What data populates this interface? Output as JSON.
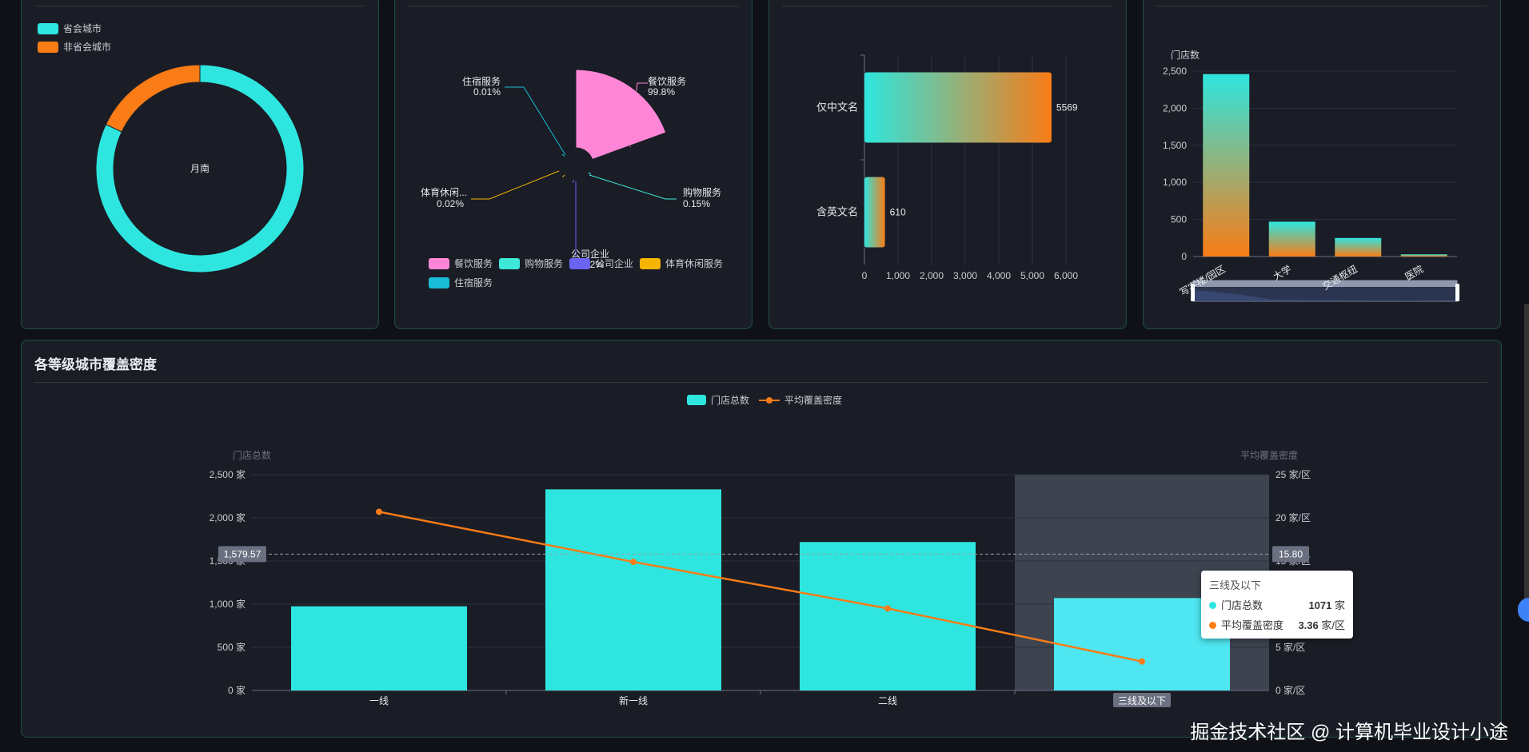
{
  "panels": {
    "p1": {
      "legend": [
        {
          "label": "省会城市",
          "color": "#2ee6df"
        },
        {
          "label": "非省会城市",
          "color": "#f97c16"
        }
      ],
      "center_label": "月南"
    },
    "p2": {
      "callouts": {
        "catering": {
          "name": "餐饮服务",
          "pct": "99.8%"
        },
        "lodging": {
          "name": "住宿服务",
          "pct": "0.01%"
        },
        "sports": {
          "name": "体育休闲...",
          "pct": "0.02%"
        },
        "shopping": {
          "name": "购物服务",
          "pct": "0.15%"
        },
        "company": {
          "name": "公司企业",
          "pct": "0.02%"
        }
      },
      "legend": [
        {
          "label": "餐饮服务",
          "color": "#ff85d6"
        },
        {
          "label": "购物服务",
          "color": "#3ee8d9"
        },
        {
          "label": "公司企业",
          "color": "#6b63f2"
        },
        {
          "label": "体育休闲服务",
          "color": "#f5b400"
        },
        {
          "label": "住宿服务",
          "color": "#19bcd6"
        }
      ]
    },
    "p4": {
      "ylabel": "门店数"
    }
  },
  "main": {
    "title": "各等级城市覆盖密度",
    "legend": {
      "bar": "门店总数",
      "line": "平均覆盖密度"
    },
    "left_axis_name": "门店总数",
    "right_axis_name": "平均覆盖密度",
    "crosshair_left": "1,579.57",
    "crosshair_right": "15.80",
    "tooltip": {
      "title": "三线及以下",
      "row1_label": "门店总数",
      "row1_value": "1071",
      "row1_unit": "家",
      "row2_label": "平均覆盖密度",
      "row2_value": "3.36",
      "row2_unit": "家/区"
    }
  },
  "watermark": "掘金技术社区 @ 计算机毕业设计小途",
  "chart_data": [
    {
      "type": "pie",
      "categories": [
        "省会城市",
        "非省会城市"
      ],
      "values": [
        82,
        18
      ],
      "colors": [
        "#2ee6df",
        "#f97c16"
      ]
    },
    {
      "type": "pie",
      "categories": [
        "餐饮服务",
        "购物服务",
        "公司企业",
        "体育休闲服务",
        "住宿服务"
      ],
      "values": [
        99.8,
        0.15,
        0.02,
        0.02,
        0.01
      ],
      "colors": [
        "#ff85d6",
        "#3ee8d9",
        "#6b63f2",
        "#f5b400",
        "#19bcd6"
      ]
    },
    {
      "type": "bar",
      "orientation": "horizontal",
      "categories": [
        "仅中文名",
        "含英文名"
      ],
      "values": [
        5569,
        610
      ],
      "xlim": [
        0,
        6000
      ],
      "xticks": [
        "0",
        "1,000",
        "2,000",
        "3,000",
        "4,000",
        "5,000",
        "6,000"
      ]
    },
    {
      "type": "bar",
      "categories": [
        "写字楼/园区",
        "大学",
        "交通枢纽",
        "医院"
      ],
      "values": [
        2460,
        470,
        250,
        30
      ],
      "ylabel": "门店数",
      "ylim": [
        0,
        2500
      ],
      "yticks": [
        "0",
        "500",
        "1,000",
        "1,500",
        "2,000",
        "2,500"
      ]
    },
    {
      "type": "bar+line",
      "categories": [
        "一线",
        "新一线",
        "二线",
        "三线及以下"
      ],
      "series": [
        {
          "name": "门店总数",
          "type": "bar",
          "values": [
            975,
            2330,
            1720,
            1071
          ],
          "color": "#2ee6df"
        },
        {
          "name": "平均覆盖密度",
          "type": "line",
          "values": [
            20.7,
            14.9,
            9.5,
            3.36
          ],
          "color": "#f97c16"
        }
      ],
      "ylim_left": [
        0,
        2500
      ],
      "ylim_right": [
        0,
        25
      ],
      "yticks_left": [
        "0 家",
        "500 家",
        "1,000 家",
        "1,500 家",
        "2,000 家",
        "2,500 家"
      ],
      "yticks_right": [
        "0 家/区",
        "5 家/区",
        "10 家/区",
        "15 家/区",
        "20 家/区",
        "25 家/区"
      ],
      "highlighted": "三线及以下"
    }
  ]
}
